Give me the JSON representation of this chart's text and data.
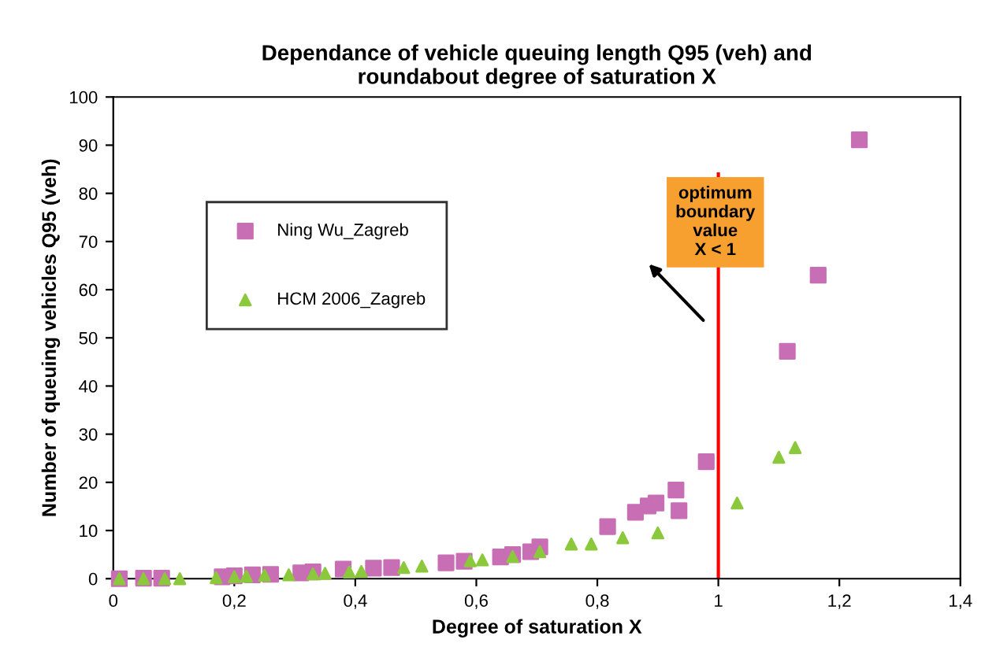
{
  "chart_data": {
    "type": "scatter",
    "title": "Dependance of vehicle queuing length Q95 (veh) and\nroundabout degree of saturation X",
    "xlabel": "Degree of saturation X",
    "ylabel": "Number of queuing vehicles Q95 (veh)",
    "series": [
      {
        "name": "Ning Wu_Zagreb",
        "color": "#c86eb4",
        "marker": "square",
        "x": [
          0.01,
          0.05,
          0.08,
          0.18,
          0.2,
          0.23,
          0.26,
          0.31,
          0.33,
          0.38,
          0.43,
          0.46,
          0.55,
          0.58,
          0.64,
          0.66,
          0.69,
          0.705,
          0.817,
          0.863,
          0.884,
          0.897,
          0.93,
          0.935,
          0.98,
          1.114,
          1.165,
          1.233
        ],
        "values": [
          0,
          0.1,
          0.1,
          0.4,
          0.6,
          0.8,
          0.9,
          1.2,
          1.4,
          2.0,
          2.2,
          2.3,
          3.3,
          3.6,
          4.5,
          5.0,
          5.6,
          6.6,
          10.8,
          13.8,
          15.1,
          15.7,
          18.4,
          14.1,
          24.3,
          47.2,
          63,
          91.1
        ]
      },
      {
        "name": "HCM 2006_Zagreb",
        "color": "#8cc83c",
        "marker": "triangle",
        "x": [
          0.01,
          0.05,
          0.085,
          0.11,
          0.17,
          0.2,
          0.22,
          0.25,
          0.29,
          0.33,
          0.35,
          0.39,
          0.41,
          0.48,
          0.51,
          0.59,
          0.61,
          0.66,
          0.705,
          0.757,
          0.79,
          0.842,
          0.9,
          1.031,
          1.1,
          1.127
        ],
        "values": [
          0,
          0,
          0,
          0,
          0.2,
          0.4,
          0.5,
          0.7,
          0.8,
          1.0,
          1.1,
          1.4,
          1.5,
          2.3,
          2.6,
          3.7,
          3.9,
          4.6,
          5.6,
          7.2,
          7.2,
          8.5,
          9.5,
          15.7,
          25.2,
          27.2
        ]
      }
    ],
    "xlim": [
      0,
      1.4
    ],
    "ylim": [
      0,
      100
    ],
    "xticks": [
      0,
      {
        "value": 0.2,
        "label": "0,2"
      },
      {
        "value": 0.4,
        "label": "0,4"
      },
      {
        "value": 0.6,
        "label": "0,6"
      },
      {
        "value": 0.8,
        "label": "0,8"
      },
      1,
      {
        "value": 1.2,
        "label": "1,2"
      },
      {
        "value": 1.4,
        "label": "1,4"
      }
    ],
    "yticks": [
      0,
      10,
      20,
      30,
      40,
      50,
      60,
      70,
      80,
      90,
      100
    ],
    "ref_lines": [
      {
        "axis": "x",
        "value": 1,
        "color": "#ff0000"
      }
    ],
    "annotations": [
      {
        "text": "optimum\nboundary\nvalue\nX < 1",
        "x": 0.995,
        "y": 74
      }
    ],
    "legend": "top left",
    "grid": false
  }
}
